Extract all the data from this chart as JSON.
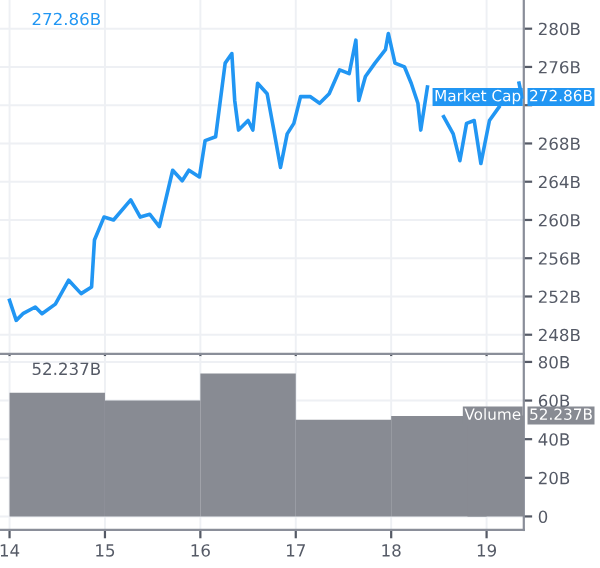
{
  "chart_data": [
    {
      "type": "line",
      "x": [
        14.0,
        14.07,
        14.14,
        14.27,
        14.34,
        14.48,
        14.62,
        14.75,
        14.86,
        14.89,
        14.99,
        15.09,
        15.27,
        15.37,
        15.47,
        15.57,
        15.71,
        15.81,
        15.88,
        15.99,
        16.05,
        16.16,
        16.26,
        16.33,
        16.36,
        16.4,
        16.5,
        16.55,
        16.6,
        16.7,
        16.77,
        16.84,
        16.91,
        16.98,
        17.05,
        17.15,
        17.25,
        17.35,
        17.46,
        17.56,
        17.63,
        17.66,
        17.73,
        17.83,
        17.94,
        17.97,
        18.04,
        18.14,
        18.21,
        18.28,
        18.31,
        18.38,
        18.48,
        18.55,
        18.65,
        18.72,
        18.79,
        18.87,
        18.94,
        19.03,
        19.13,
        19.24,
        19.34,
        19.37
      ],
      "series": [
        {
          "name": "Market Cap",
          "color": "#2196f3",
          "values": [
            251.6,
            249.5,
            250.2,
            250.9,
            250.2,
            251.2,
            253.7,
            252.3,
            253.0,
            257.9,
            260.3,
            260.0,
            262.1,
            260.3,
            260.6,
            259.3,
            265.2,
            264.1,
            265.2,
            264.5,
            268.3,
            268.7,
            276.4,
            277.4,
            272.5,
            269.4,
            270.4,
            269.4,
            274.3,
            273.2,
            269.4,
            265.5,
            269.0,
            270.1,
            272.9,
            272.9,
            272.2,
            273.2,
            275.7,
            275.3,
            278.8,
            272.5,
            275.0,
            276.4,
            277.8,
            279.5,
            276.4,
            276.0,
            274.3,
            272.2,
            269.4,
            273.9,
            null,
            270.8,
            269.0,
            266.2,
            270.1,
            270.4,
            265.9,
            270.4,
            271.8,
            null,
            274.3,
            272.86
          ]
        }
      ],
      "xlim": [
        13.9,
        19.39
      ],
      "ylim": [
        246,
        283
      ],
      "yticks": [
        {
          "value": 248,
          "label": "248B"
        },
        {
          "value": 252,
          "label": "252B"
        },
        {
          "value": 256,
          "label": "256B"
        },
        {
          "value": 260,
          "label": "260B"
        },
        {
          "value": 264,
          "label": "264B"
        },
        {
          "value": 268,
          "label": "268B"
        },
        {
          "value": 272,
          "label": null
        },
        {
          "value": 276,
          "label": "276B"
        },
        {
          "value": 280,
          "label": "280B"
        }
      ],
      "tick_labels": "y",
      "grid": true,
      "annotations": [
        "272.86B",
        "272.86B"
      ]
    },
    {
      "type": "bar",
      "x": [
        14.5,
        15.5,
        16.5,
        17.5,
        18.5,
        19.3
      ],
      "series": [
        {
          "name": "Volume",
          "color": "#888b93",
          "values": [
            64,
            60,
            74,
            50,
            52,
            52.237
          ]
        }
      ],
      "xlim": [
        13.9,
        19.39
      ],
      "ylim": [
        -7,
        83
      ],
      "xticks": [
        14,
        15,
        16,
        17,
        18,
        19
      ],
      "yticks": [
        {
          "value": 0,
          "label": "0"
        },
        {
          "value": 20,
          "label": "20B"
        },
        {
          "value": 40,
          "label": "40B"
        },
        {
          "value": 60,
          "label": "60B"
        },
        {
          "value": 80,
          "label": "80B"
        }
      ],
      "grid": true,
      "annotations": [
        "52.237B",
        "52.237B"
      ]
    }
  ]
}
